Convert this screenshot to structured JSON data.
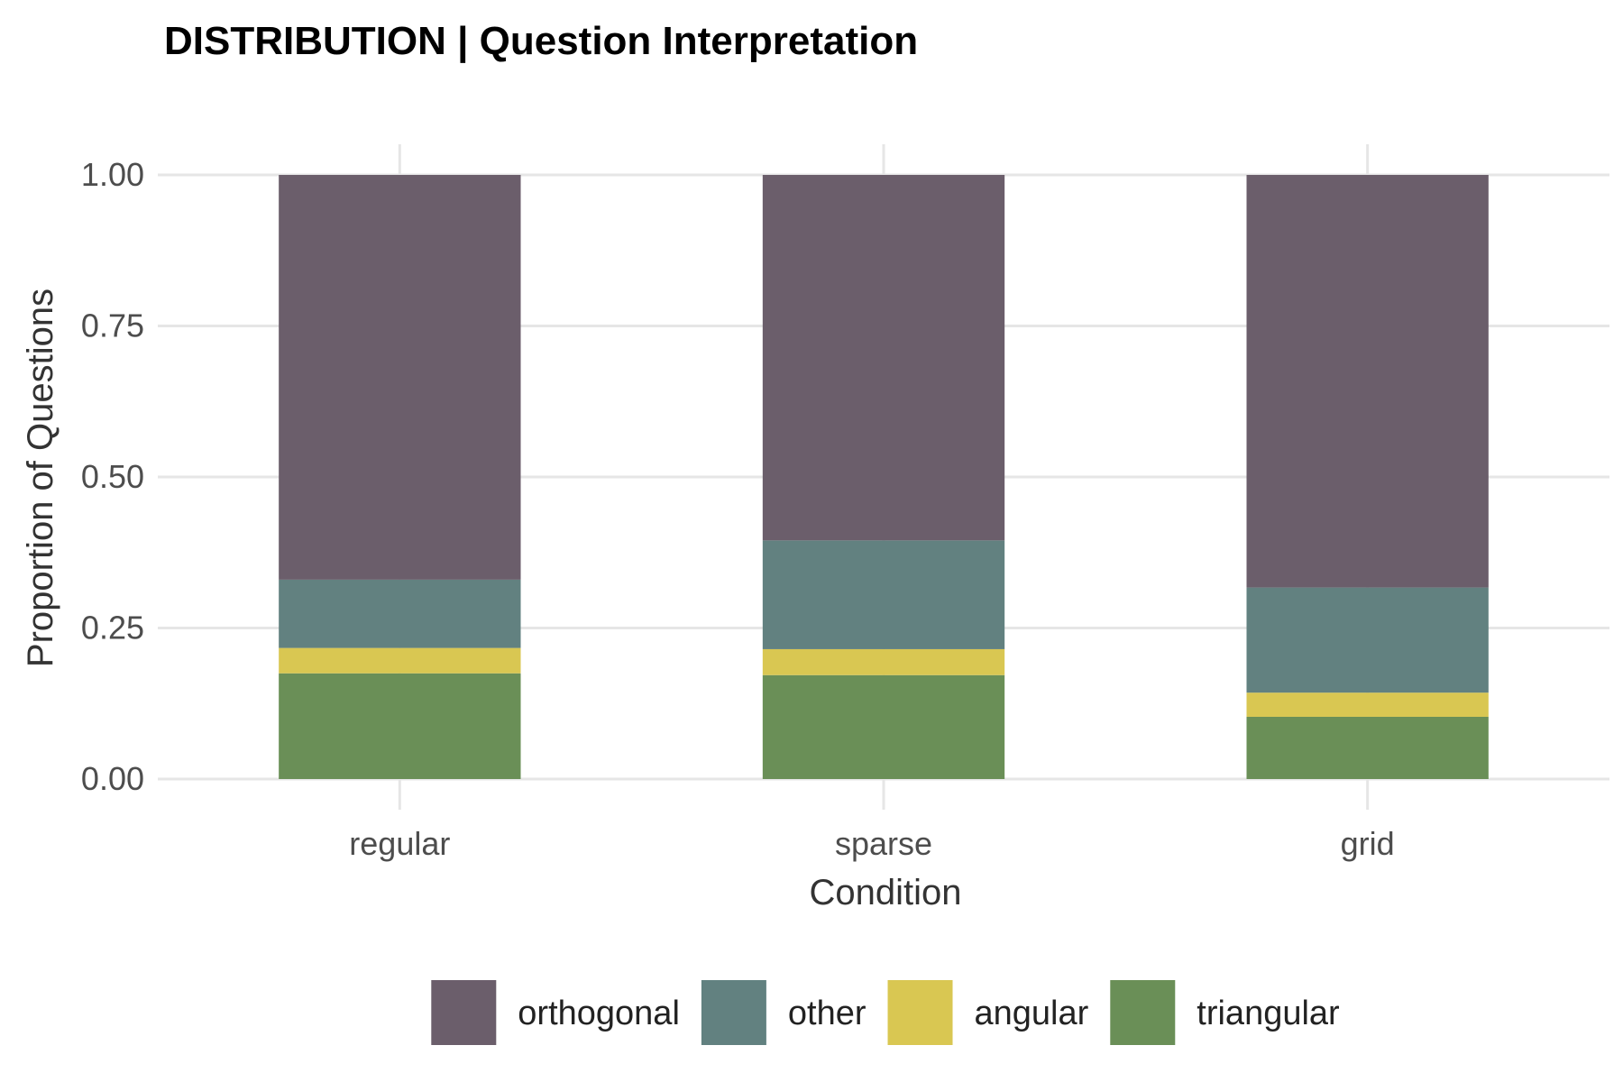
{
  "chart_data": {
    "type": "bar",
    "stacked": true,
    "title": "DISTRIBUTION | Question Interpretation",
    "xlabel": "Condition",
    "ylabel": "Proportion of Questions",
    "categories": [
      "regular",
      "sparse",
      "grid"
    ],
    "ylim": [
      0,
      1
    ],
    "yticks": [
      "0.00",
      "0.25",
      "0.50",
      "0.75",
      "1.00"
    ],
    "grid": true,
    "legend_position": "bottom",
    "series": [
      {
        "name": "triangular",
        "color": "#6a8f57",
        "values": [
          0.175,
          0.172,
          0.103
        ]
      },
      {
        "name": "angular",
        "color": "#d9c752",
        "values": [
          0.042,
          0.043,
          0.04
        ]
      },
      {
        "name": "other",
        "color": "#628180",
        "values": [
          0.113,
          0.18,
          0.174
        ]
      },
      {
        "name": "orthogonal",
        "color": "#6b5e6b",
        "values": [
          0.67,
          0.605,
          0.683
        ]
      }
    ],
    "legend_order": [
      "orthogonal",
      "other",
      "angular",
      "triangular"
    ]
  }
}
